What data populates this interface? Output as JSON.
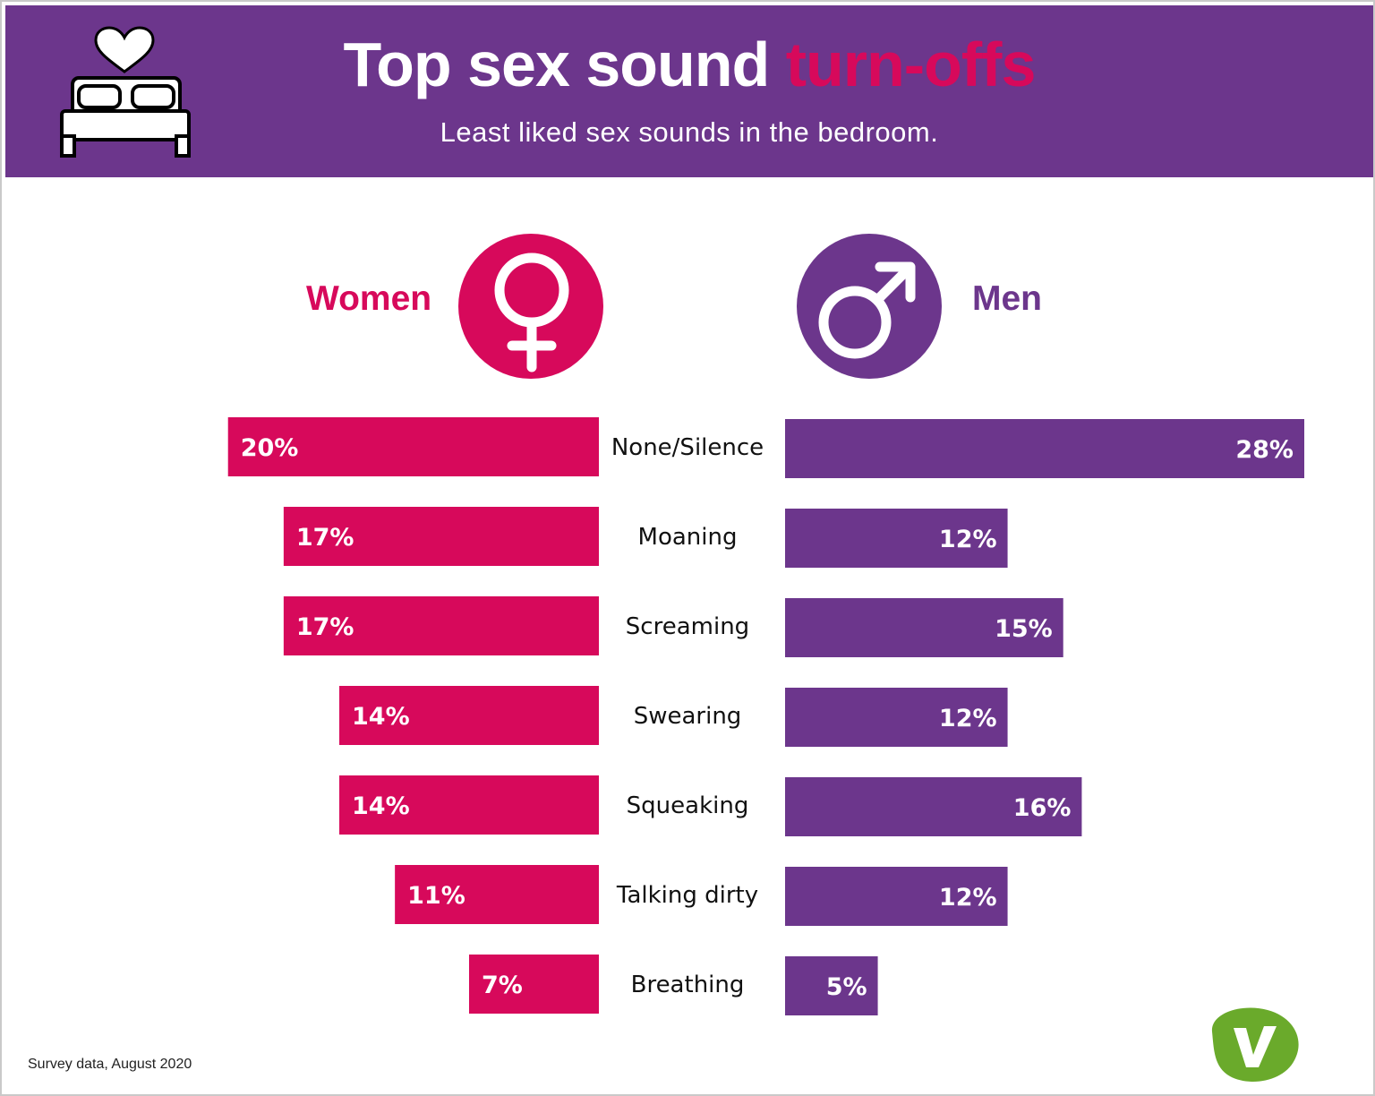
{
  "header": {
    "title_main": "Top sex sound ",
    "title_accent": "turn-offs",
    "subtitle": "Least liked sex sounds in the bedroom.",
    "icon": "bed-heart-icon"
  },
  "groups": {
    "women_label": "Women",
    "men_label": "Men",
    "women_icon": "female-symbol-icon",
    "men_icon": "male-symbol-icon"
  },
  "colors": {
    "header_bg": "#6c368c",
    "women": "#d7095b",
    "men": "#6c368c"
  },
  "chart_data": {
    "type": "bar",
    "title": "Top sex sound turn-offs",
    "subtitle": "Least liked sex sounds in the bedroom.",
    "categories": [
      "None/Silence",
      "Moaning",
      "Screaming",
      "Swearing",
      "Squeaking",
      "Talking dirty",
      "Breathing"
    ],
    "series": [
      {
        "name": "Women",
        "values": [
          20,
          17,
          17,
          14,
          14,
          11,
          7
        ],
        "labels": [
          "20%",
          "17%",
          "17%",
          "14%",
          "14%",
          "11%",
          "7%"
        ]
      },
      {
        "name": "Men",
        "values": [
          28,
          12,
          15,
          12,
          16,
          12,
          5
        ],
        "labels": [
          "28%",
          "12%",
          "15%",
          "12%",
          "16%",
          "12%",
          "5%"
        ]
      }
    ],
    "xlim": [
      0,
      28
    ],
    "grid": false
  },
  "footer": {
    "source": "Survey data, August 2020",
    "logo_icon": "brand-v-logo-icon"
  }
}
